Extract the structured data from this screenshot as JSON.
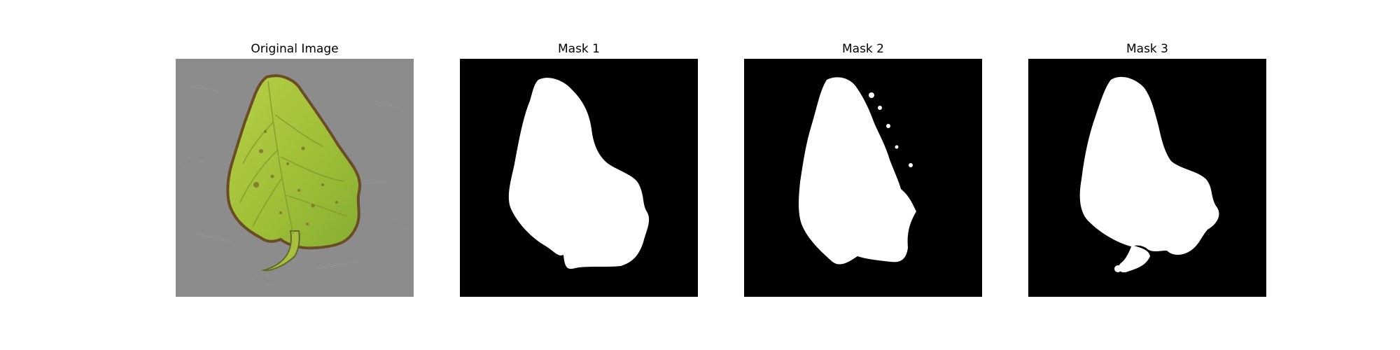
{
  "figure": {
    "panels": [
      {
        "title": "Original Image",
        "kind": "photo",
        "subject": "leaf"
      },
      {
        "title": "Mask 1",
        "kind": "binary-mask"
      },
      {
        "title": "Mask 2",
        "kind": "binary-mask"
      },
      {
        "title": "Mask 3",
        "kind": "binary-mask"
      }
    ],
    "colors": {
      "page_background": "#ffffff",
      "photo_background": "#8c8c8c",
      "leaf_fill": "#a6c23b",
      "leaf_edge": "#7a5a2e",
      "mask_background": "#000000",
      "mask_foreground": "#ffffff"
    }
  }
}
